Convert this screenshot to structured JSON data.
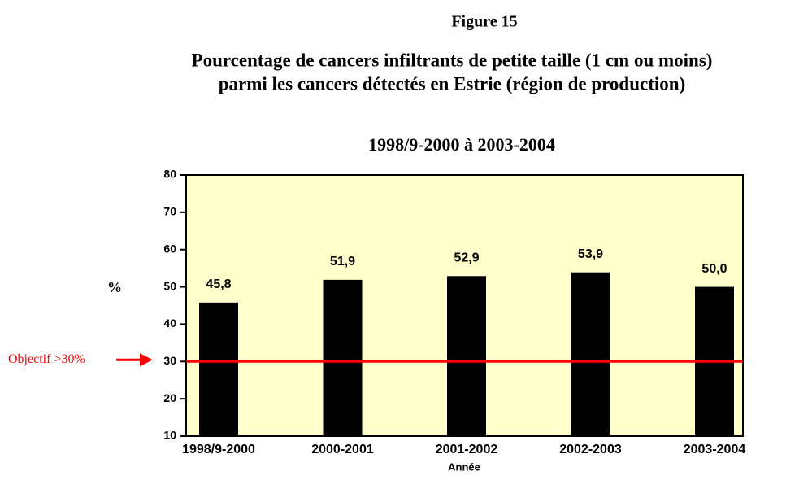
{
  "chart_data": {
    "type": "bar",
    "figure_label": "Figure 15",
    "title": [
      "Pourcentage de cancers infiltrants de petite taille (1 cm ou moins)",
      "parmi les cancers détectés en Estrie (région de production)"
    ],
    "subtitle": "1998/9-2000 à 2003-2004",
    "categories": [
      "1998/9-2000",
      "2000-2001",
      "2001-2002",
      "2002-2003",
      "2003-2004"
    ],
    "values": [
      45.8,
      51.9,
      52.9,
      53.9,
      50.0
    ],
    "value_labels": [
      "45,8",
      "51,9",
      "52,9",
      "53,9",
      "50,0"
    ],
    "color": "#000000",
    "background": "#ffffcc",
    "ylim": [
      10,
      80
    ],
    "yticks": [
      10,
      20,
      30,
      40,
      50,
      60,
      70,
      80
    ],
    "ylabel": "%",
    "xlabel": "Année",
    "target": {
      "value": 30,
      "label": "Objectif >30%",
      "color": "#ff0000"
    }
  }
}
